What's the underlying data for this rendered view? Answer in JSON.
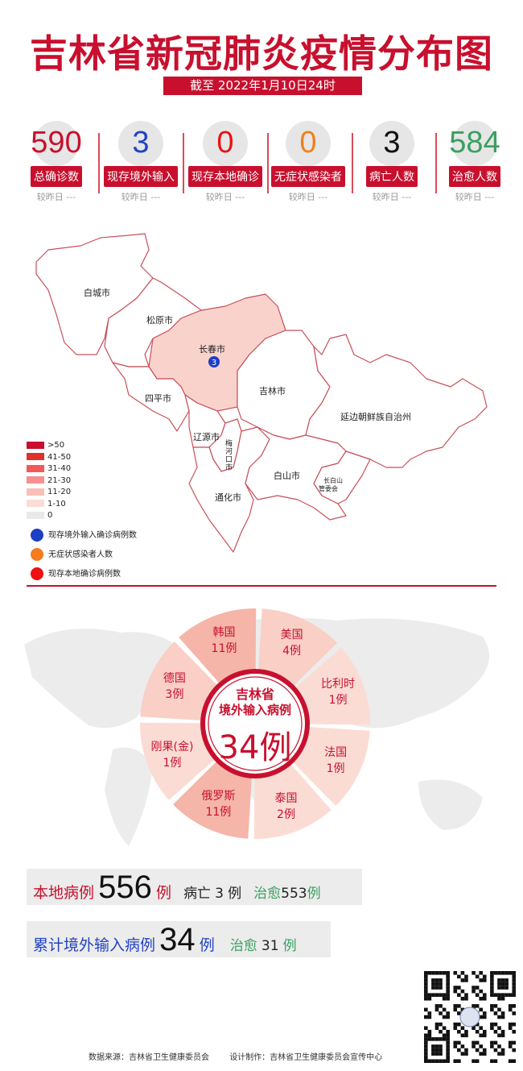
{
  "header": {
    "title": "吉林省新冠肺炎疫情分布图",
    "date": "截至 2022年1月10日24时"
  },
  "stats": [
    {
      "value": "590",
      "label": "总确诊数",
      "compare": "较昨日 ---",
      "color": "#c8102e"
    },
    {
      "value": "3",
      "label": "现存境外输入",
      "compare": "较昨日 ---",
      "color": "#2343c4"
    },
    {
      "value": "0",
      "label": "现存本地确诊",
      "compare": "较昨日 ---",
      "color": "#ee1111"
    },
    {
      "value": "0",
      "label": "无症状感染者",
      "compare": "较昨日 ---",
      "color": "#f08020"
    },
    {
      "value": "3",
      "label": "病亡人数",
      "compare": "较昨日 ---",
      "color": "#111111"
    },
    {
      "value": "584",
      "label": "治愈人数",
      "compare": "较昨日 ---",
      "color": "#3aa060"
    }
  ],
  "map": {
    "regions": [
      "白城市",
      "松原市",
      "长春市",
      "吉林市",
      "四平市",
      "延边朝鲜族自治州",
      "辽源市",
      "梅河口市",
      "通化市",
      "白山市",
      "长白山管委会"
    ],
    "labels": {
      "baicheng": "白城市",
      "songyuan": "松原市",
      "changchun": "长春市",
      "jilin": "吉林市",
      "siping": "四平市",
      "yanbian": "延边朝鲜族自治州",
      "liaoyuan": "辽源市",
      "meihekou_1": "梅",
      "meihekou_2": "河",
      "meihekou_3": "口",
      "meihekou_4": "市",
      "baishan": "白山市",
      "tonghua": "通化市",
      "changbaishan_1": "长白山",
      "changbaishan_2": "管委会"
    },
    "changchun_imported": "3",
    "scale": [
      {
        "label": ">50",
        "color": "#c8102e"
      },
      {
        "label": "41-50",
        "color": "#e0302e"
      },
      {
        "label": "31-40",
        "color": "#f25a5a"
      },
      {
        "label": "21-30",
        "color": "#f59090"
      },
      {
        "label": "11-20",
        "color": "#f9c0b8"
      },
      {
        "label": "1-10",
        "color": "#fbdcd6"
      },
      {
        "label": "0",
        "color": "#e9e9ec"
      }
    ],
    "dot_legend": [
      {
        "label": "现存境外输入确诊病例数",
        "color": "#1c3fc4"
      },
      {
        "label": "无症状感染者人数",
        "color": "#f57c1f"
      },
      {
        "label": "现存本地确诊病例数",
        "color": "#ee1111"
      }
    ]
  },
  "imported": {
    "center_line1": "吉林省",
    "center_line2": "境外输入病例",
    "center_total": "34例",
    "countries": [
      {
        "name": "韩国",
        "count": "11例",
        "value": 11
      },
      {
        "name": "美国",
        "count": "4例",
        "value": 4
      },
      {
        "name": "比利时",
        "count": "1例",
        "value": 1
      },
      {
        "name": "法国",
        "count": "1例",
        "value": 1
      },
      {
        "name": "泰国",
        "count": "2例",
        "value": 2
      },
      {
        "name": "俄罗斯",
        "count": "11例",
        "value": 11
      },
      {
        "name": "刚果(金)",
        "count": "1例",
        "value": 1
      },
      {
        "name": "德国",
        "count": "3例",
        "value": 3
      }
    ]
  },
  "summary": {
    "local_label": "本地病例",
    "local_value": "556",
    "unit": "例",
    "death_label": "病亡",
    "death_value": "3",
    "death_unit": "例",
    "cured_label": "治愈",
    "cured_value": "553",
    "cured_unit": "例",
    "imported_label": "累计境外输入病例",
    "imported_value": "34",
    "imported_unit": "例",
    "imported_cured_label": "治愈",
    "imported_cured_value": "31",
    "imported_cured_unit": "例"
  },
  "footer": {
    "source": "数据来源：吉林省卫生健康委员会",
    "design": "设计制作：吉林省卫生健康委员会宣传中心"
  }
}
